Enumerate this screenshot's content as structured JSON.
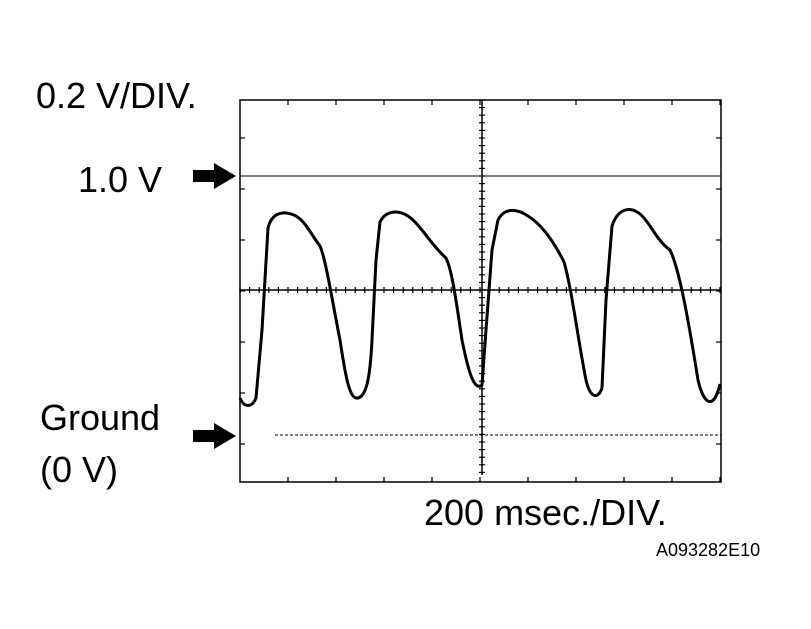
{
  "vertical_scale": "0.2 V/DIV.",
  "reference_label": "1.0 V",
  "ground_label": {
    "line1": "Ground",
    "line2": "(0 V)"
  },
  "horizontal_scale": "200 msec./DIV.",
  "figure_code": "A093282E10"
}
